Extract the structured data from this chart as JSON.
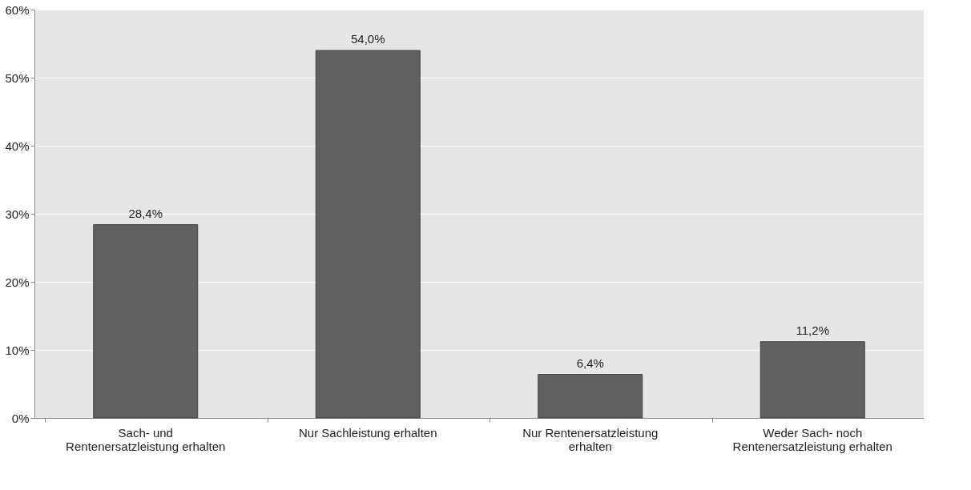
{
  "chart_data": {
    "type": "bar",
    "categories": [
      "Sach- und Rentenersatzleistung erhalten",
      "Nur Sachleistung erhalten",
      "Nur Rentenersatzleistung erhalten",
      "Weder Sach- noch Rentenersatzleistung erhalten"
    ],
    "values": [
      28.4,
      54.0,
      6.4,
      11.2
    ],
    "value_labels": [
      "28,4%",
      "54,0%",
      "6,4%",
      "11,2%"
    ],
    "color": "#606060",
    "ylim": [
      0,
      60
    ],
    "yticks": [
      {
        "value": 0,
        "label": "0%"
      },
      {
        "value": 10,
        "label": "10%"
      },
      {
        "value": 20,
        "label": "20%"
      },
      {
        "value": 30,
        "label": "30%"
      },
      {
        "value": 40,
        "label": "40%"
      },
      {
        "value": 50,
        "label": "50%"
      },
      {
        "value": 60,
        "label": "60%"
      }
    ],
    "grid": "y"
  }
}
